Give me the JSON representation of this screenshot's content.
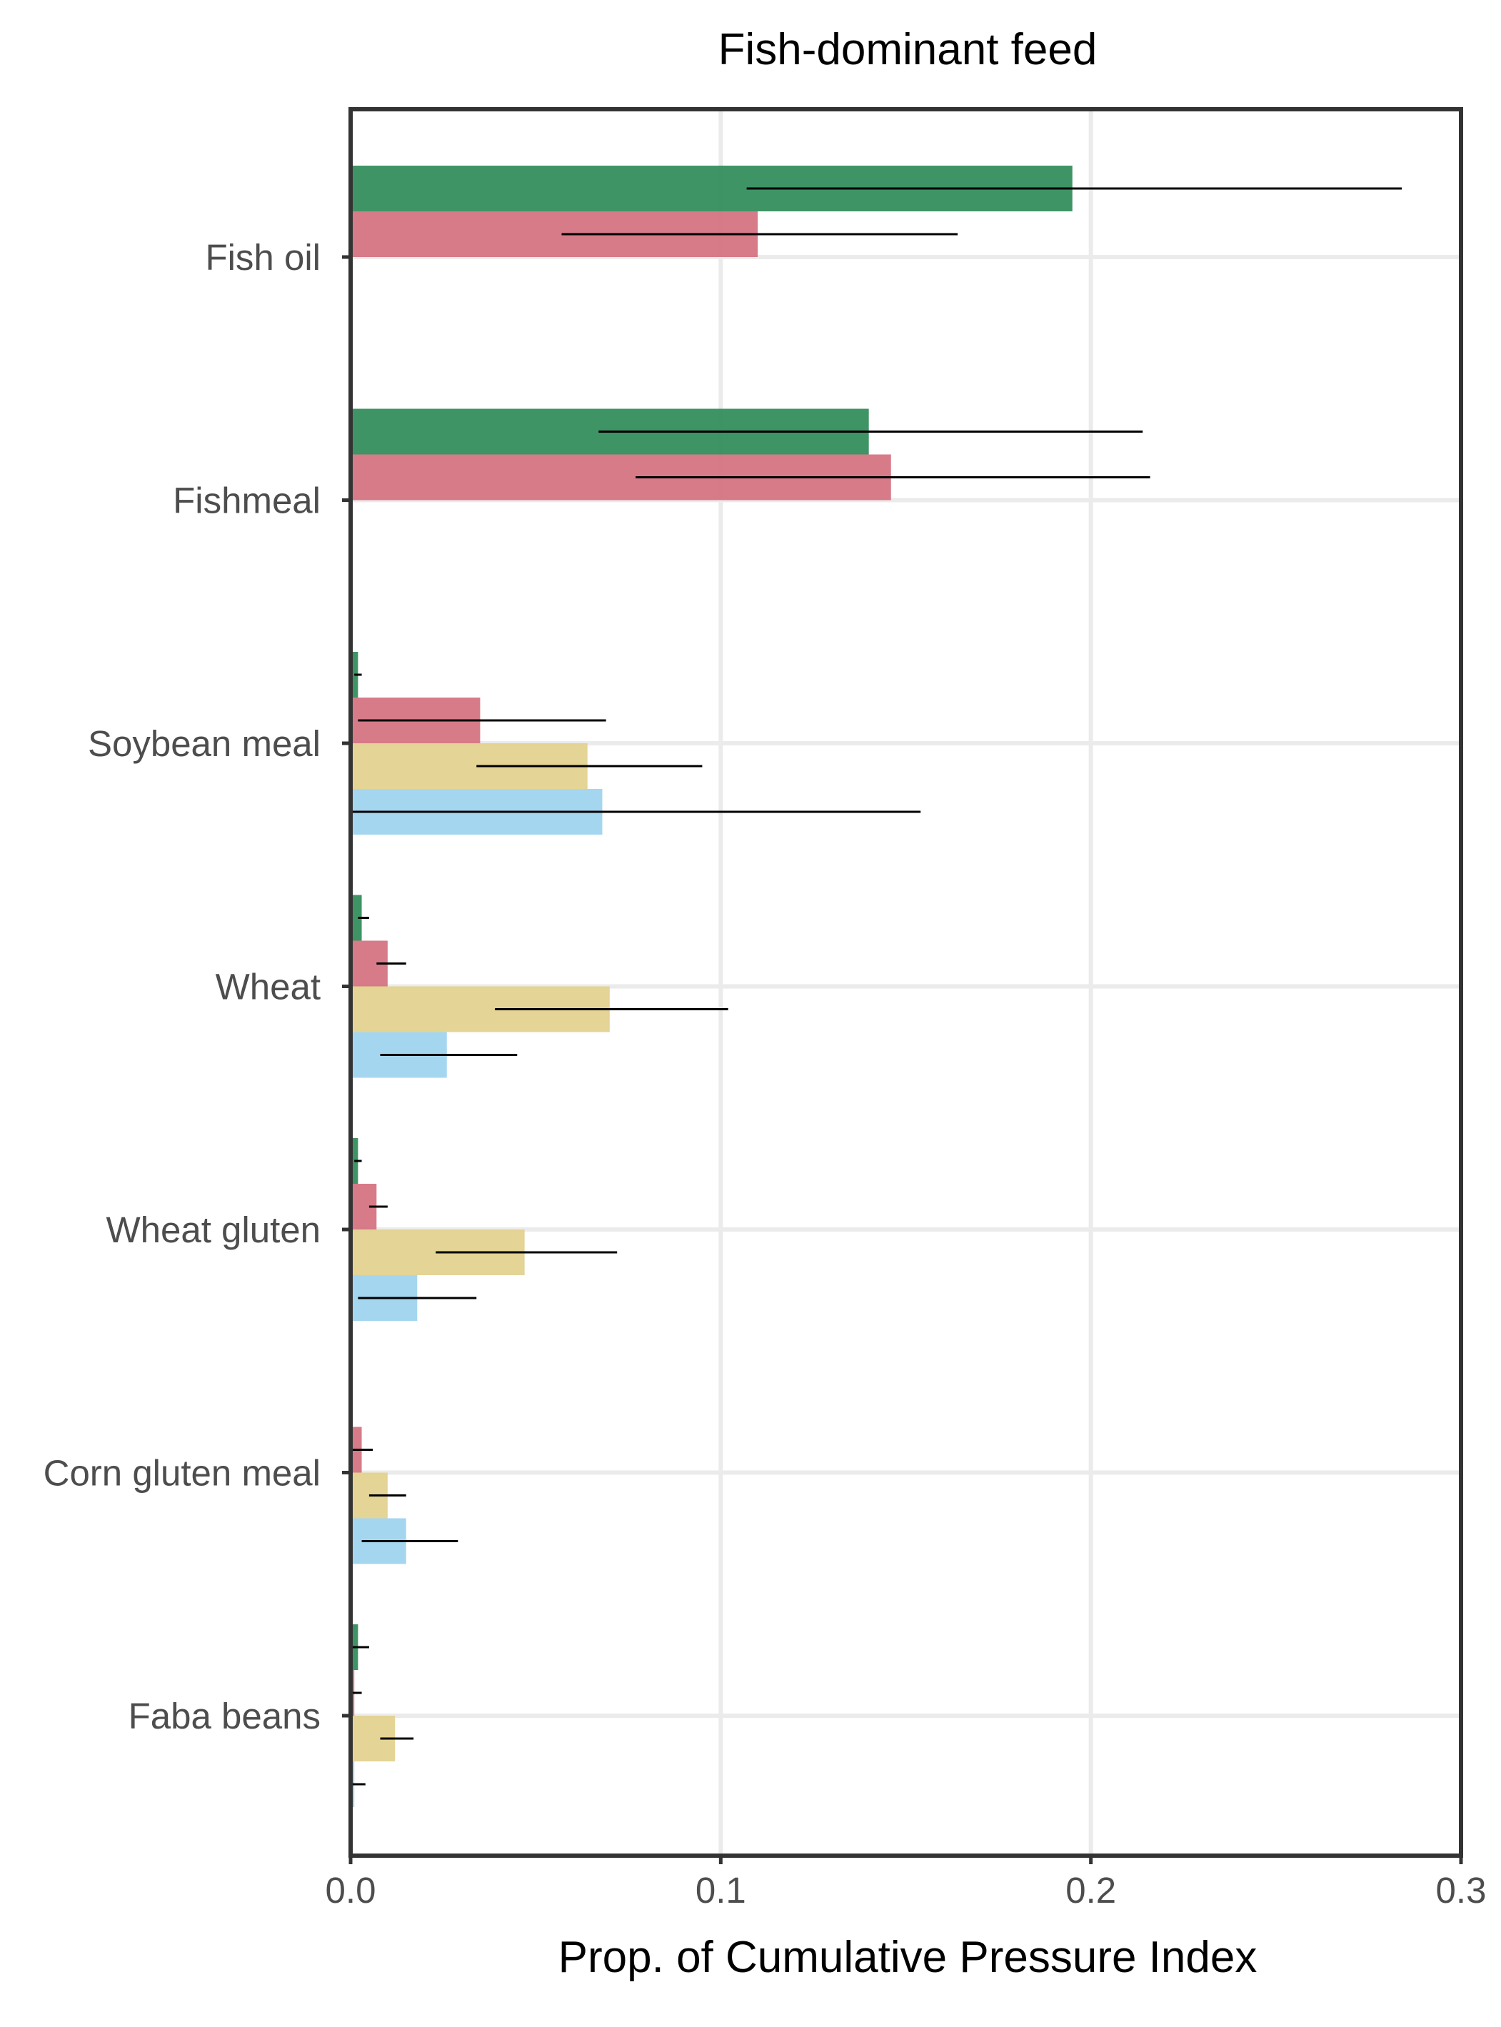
{
  "chart_data": {
    "type": "bar",
    "orientation": "horizontal",
    "title": "Fish-dominant feed",
    "xlabel": "Prop. of Cumulative Pressure Index",
    "ylabel": "",
    "xlim": [
      0,
      0.3
    ],
    "xticks": [
      {
        "value": 0.0,
        "label": "0.0"
      },
      {
        "value": 0.1,
        "label": "0.1"
      },
      {
        "value": 0.2,
        "label": "0.2"
      },
      {
        "value": 0.3,
        "label": "0.3"
      }
    ],
    "grid": true,
    "legend": "none",
    "categories": [
      "Fish oil",
      "Fishmeal",
      "Soybean meal",
      "Wheat",
      "Wheat gluten",
      "Corn gluten meal",
      "Faba beans"
    ],
    "series": [
      {
        "color": "#2e8b57",
        "values": [
          0.195,
          0.14,
          0.002,
          0.003,
          0.002,
          null,
          0.002
        ],
        "error_low": [
          0.107,
          0.067,
          0.001,
          0.002,
          0.001,
          null,
          0.0
        ],
        "error_high": [
          0.284,
          0.214,
          0.003,
          0.005,
          0.003,
          null,
          0.005
        ]
      },
      {
        "color": "#d4707f",
        "values": [
          0.11,
          0.146,
          0.035,
          0.01,
          0.007,
          0.003,
          0.001
        ],
        "error_low": [
          0.057,
          0.077,
          0.002,
          0.007,
          0.005,
          0.0,
          0.0
        ],
        "error_high": [
          0.164,
          0.216,
          0.069,
          0.015,
          0.01,
          0.006,
          0.003
        ]
      },
      {
        "color": "#e2d08c",
        "values": [
          null,
          null,
          0.064,
          0.07,
          0.047,
          0.01,
          0.012
        ],
        "error_low": [
          null,
          null,
          0.034,
          0.039,
          0.023,
          0.005,
          0.008
        ],
        "error_high": [
          null,
          null,
          0.095,
          0.102,
          0.072,
          0.015,
          0.017
        ]
      },
      {
        "color": "#9dd3ef",
        "values": [
          null,
          null,
          0.068,
          0.026,
          0.018,
          0.015,
          0.001
        ],
        "error_low": [
          null,
          null,
          0.0,
          0.008,
          0.002,
          0.003,
          0.0
        ],
        "error_high": [
          null,
          null,
          0.154,
          0.045,
          0.034,
          0.029,
          0.004
        ]
      }
    ]
  }
}
